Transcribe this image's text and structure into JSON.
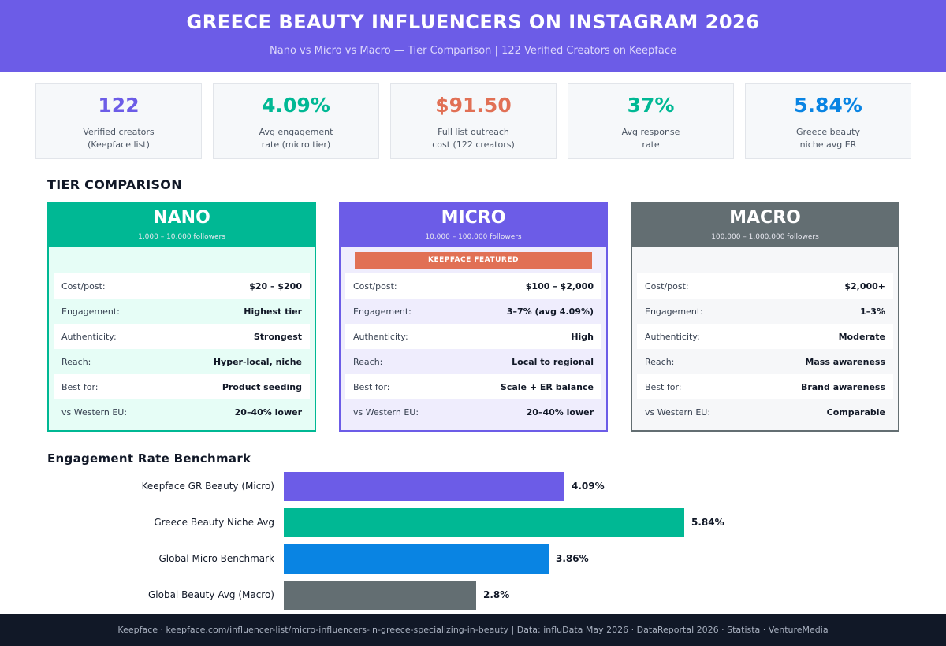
{
  "header": {
    "title": "GREECE BEAUTY INFLUENCERS ON INSTAGRAM 2026",
    "subtitle": "Nano vs Micro vs Macro — Tier Comparison | 122 Verified Creators on Keepface",
    "background": "#6c5ce7"
  },
  "stats": [
    {
      "value": "122",
      "label": "Verified creators\n(Keepface list)",
      "color": "#6c5ce7"
    },
    {
      "value": "4.09%",
      "label": "Avg engagement\nrate (micro tier)",
      "color": "#00b894"
    },
    {
      "value": "$91.50",
      "label": "Full list outreach\ncost (122 creators)",
      "color": "#e17055"
    },
    {
      "value": "37%",
      "label": "Avg response\nrate",
      "color": "#00b894"
    },
    {
      "value": "5.84%",
      "label": "Greece beauty\nniche avg ER",
      "color": "#0984e3"
    }
  ],
  "tier_section": {
    "title": "TIER COMPARISON"
  },
  "tiers": [
    {
      "name": "NANO",
      "range": "1,000 – 10,000 followers",
      "color": "#00b894",
      "tint": "#e6fdf6",
      "badge": "",
      "rows": [
        {
          "k": "Cost/post:",
          "v": "$20 – $200"
        },
        {
          "k": "Engagement:",
          "v": "Highest tier"
        },
        {
          "k": "Authenticity:",
          "v": "Strongest"
        },
        {
          "k": "Reach:",
          "v": "Hyper-local, niche"
        },
        {
          "k": "Best for:",
          "v": "Product seeding"
        },
        {
          "k": "vs Western EU:",
          "v": "20–40% lower"
        }
      ]
    },
    {
      "name": "MICRO",
      "range": "10,000 – 100,000 followers",
      "color": "#6c5ce7",
      "tint": "#efedfd",
      "badge": "KEEPFACE FEATURED",
      "rows": [
        {
          "k": "Cost/post:",
          "v": "$100 – $2,000"
        },
        {
          "k": "Engagement:",
          "v": "3–7% (avg 4.09%)"
        },
        {
          "k": "Authenticity:",
          "v": "High"
        },
        {
          "k": "Reach:",
          "v": "Local to regional"
        },
        {
          "k": "Best for:",
          "v": "Scale + ER balance"
        },
        {
          "k": "vs Western EU:",
          "v": "20–40% lower"
        }
      ]
    },
    {
      "name": "MACRO",
      "range": "100,000 – 1,000,000 followers",
      "color": "#636e72",
      "tint": "#f6f7f9",
      "badge": "",
      "rows": [
        {
          "k": "Cost/post:",
          "v": "$2,000+"
        },
        {
          "k": "Engagement:",
          "v": "1–3%"
        },
        {
          "k": "Authenticity:",
          "v": "Moderate"
        },
        {
          "k": "Reach:",
          "v": "Mass awareness"
        },
        {
          "k": "Best for:",
          "v": "Brand awareness"
        },
        {
          "k": "vs Western EU:",
          "v": "Comparable"
        }
      ]
    }
  ],
  "chart_data": {
    "type": "bar",
    "orientation": "horizontal",
    "title": "Engagement Rate Benchmark",
    "categories": [
      "Keepface GR Beauty (Micro)",
      "Greece Beauty Niche Avg",
      "Global Micro Benchmark",
      "Global Beauty Avg (Macro)"
    ],
    "values": [
      4.09,
      5.84,
      3.86,
      2.8
    ],
    "value_labels": [
      "4.09%",
      "5.84%",
      "3.86%",
      "2.8%"
    ],
    "colors": [
      "#6c5ce7",
      "#00b894",
      "#0984e3",
      "#636e72"
    ],
    "xlabel": "",
    "ylabel": "",
    "xlim": [
      0,
      6.6
    ],
    "grid": false
  },
  "footer": {
    "text": "Keepface · keepface.com/influencer-list/micro-influencers-in-greece-specializing-in-beauty  | Data: influData May 2026 · DataReportal 2026 · Statista · VentureMedia"
  }
}
